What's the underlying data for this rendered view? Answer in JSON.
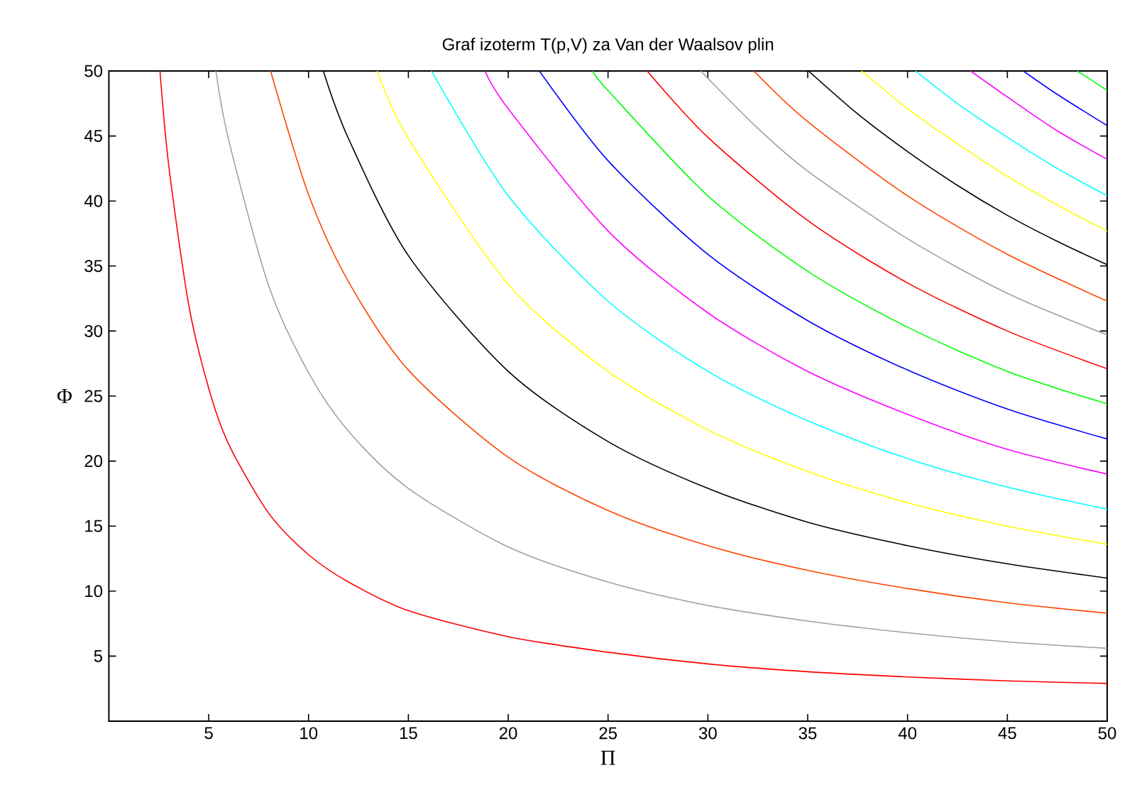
{
  "chart_data": {
    "type": "line",
    "title": "Graf izoterm T(p,V) za Van der Waalsov plin",
    "xlabel": "Π",
    "ylabel": "Φ",
    "xlim": [
      0,
      50
    ],
    "ylim": [
      0,
      50
    ],
    "xticks": [
      5,
      10,
      15,
      20,
      25,
      30,
      35,
      40,
      45,
      50
    ],
    "yticks": [
      5,
      10,
      15,
      20,
      25,
      30,
      35,
      40,
      45,
      50
    ],
    "grid": false,
    "marker": "none",
    "line_style": "solid",
    "series": [
      {
        "color": "#ff0000",
        "x": [
          2.56,
          3,
          4,
          5,
          6,
          8,
          10,
          12,
          15,
          20,
          25,
          30,
          35,
          40,
          45,
          50
        ],
        "values": [
          50,
          42.7,
          32,
          25.6,
          21.3,
          16,
          12.8,
          10.7,
          8.5,
          6.5,
          5.3,
          4.4,
          3.8,
          3.4,
          3.1,
          2.9
        ]
      },
      {
        "color": "#a0a0a0",
        "x": [
          5.36,
          6,
          8,
          10,
          12,
          15,
          20,
          25,
          30,
          35,
          40,
          45,
          50
        ],
        "values": [
          50,
          44.7,
          33.5,
          26.8,
          22.3,
          17.9,
          13.4,
          10.7,
          8.9,
          7.7,
          6.8,
          6.1,
          5.6
        ]
      },
      {
        "color": "#ff4500",
        "x": [
          8.1,
          10,
          12,
          15,
          20,
          25,
          30,
          35,
          40,
          45,
          50
        ],
        "values": [
          50,
          40.5,
          33.8,
          27,
          20.3,
          16.2,
          13.5,
          11.6,
          10.2,
          9.1,
          8.3
        ]
      },
      {
        "color": "#000000",
        "x": [
          10.74,
          12,
          15,
          20,
          25,
          30,
          35,
          40,
          45,
          50
        ],
        "values": [
          50,
          44.8,
          35.8,
          26.9,
          21.5,
          17.9,
          15.3,
          13.5,
          12.1,
          11.0
        ]
      },
      {
        "color": "#ffff00",
        "x": [
          13.44,
          15,
          20,
          25,
          30,
          35,
          40,
          45,
          50
        ],
        "values": [
          50,
          44.8,
          33.6,
          26.9,
          22.4,
          19.2,
          16.8,
          15.0,
          13.6
        ]
      },
      {
        "color": "#00ffff",
        "x": [
          16.16,
          20,
          25,
          30,
          35,
          40,
          45,
          50
        ],
        "values": [
          50,
          40.4,
          32.3,
          26.9,
          23.1,
          20.2,
          18.0,
          16.3
        ]
      },
      {
        "color": "#ff00ff",
        "x": [
          18.84,
          20,
          25,
          30,
          35,
          40,
          45,
          50
        ],
        "values": [
          50,
          47.1,
          37.7,
          31.4,
          26.9,
          23.6,
          20.9,
          19.0
        ]
      },
      {
        "color": "#0000ff",
        "x": [
          21.56,
          25,
          30,
          35,
          40,
          45,
          50
        ],
        "values": [
          50,
          43.1,
          35.9,
          30.8,
          27.0,
          24.0,
          21.7
        ]
      },
      {
        "color": "#00ff00",
        "x": [
          24.24,
          25,
          30,
          35,
          40,
          45,
          50
        ],
        "values": [
          50,
          48.5,
          40.4,
          34.6,
          30.3,
          26.9,
          24.4
        ]
      },
      {
        "color": "#ff0000",
        "x": [
          26.96,
          30,
          35,
          40,
          45,
          50
        ],
        "values": [
          50,
          44.9,
          38.5,
          33.7,
          30.0,
          27.1
        ]
      },
      {
        "color": "#a0a0a0",
        "x": [
          29.64,
          32.5,
          35,
          40,
          45,
          50
        ],
        "values": [
          50,
          45.6,
          42.3,
          37.1,
          32.9,
          29.7
        ]
      },
      {
        "color": "#ff4500",
        "x": [
          32.3,
          35,
          40,
          45,
          50
        ],
        "values": [
          50,
          46.1,
          40.4,
          35.9,
          32.3
        ]
      },
      {
        "color": "#000000",
        "x": [
          35.04,
          37.5,
          40,
          42.5,
          45,
          47.5,
          50
        ],
        "values": [
          50,
          46.7,
          43.8,
          41.2,
          38.9,
          36.9,
          35.1
        ]
      },
      {
        "color": "#ffff00",
        "x": [
          37.7,
          40,
          42.5,
          45,
          47.5,
          50
        ],
        "values": [
          50,
          47.1,
          44.4,
          41.9,
          39.7,
          37.7
        ]
      },
      {
        "color": "#00ffff",
        "x": [
          40.4,
          42.5,
          45,
          47.5,
          50
        ],
        "values": [
          50,
          47.5,
          44.9,
          42.5,
          40.4
        ]
      },
      {
        "color": "#ff00ff",
        "x": [
          43.16,
          45,
          47.5,
          50
        ],
        "values": [
          50,
          48.0,
          45.4,
          43.2
        ]
      },
      {
        "color": "#0000ff",
        "x": [
          45.8,
          47.5,
          50
        ],
        "values": [
          50,
          48.2,
          45.8
        ]
      },
      {
        "color": "#00ff00",
        "x": [
          48.5,
          49,
          50
        ],
        "values": [
          50,
          49.5,
          48.5
        ]
      }
    ]
  }
}
